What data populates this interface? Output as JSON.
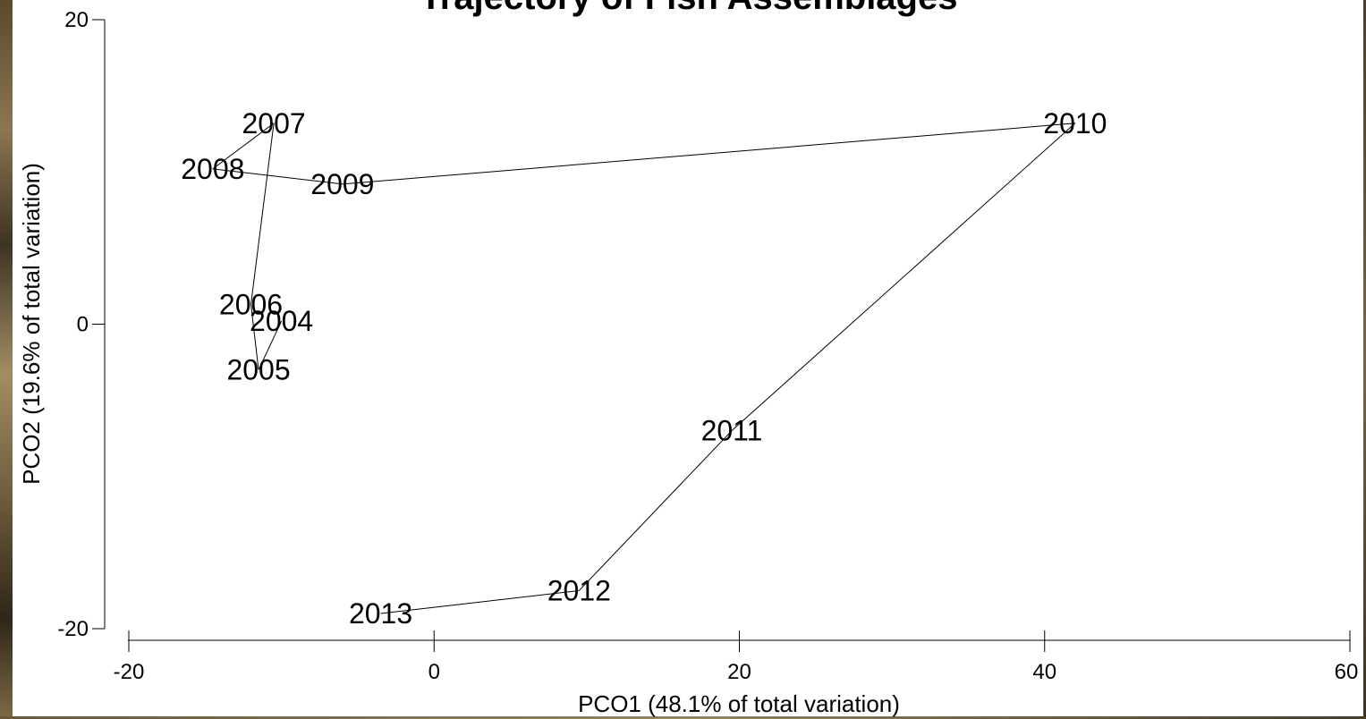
{
  "chart_data": {
    "type": "scatter",
    "title": "Trajectory of Fish Assemblages",
    "xlabel": "PCO1 (48.1% of total variation)",
    "ylabel": "PCO2 (19.6% of total variation)",
    "xlim": [
      -20,
      60
    ],
    "ylim": [
      -20,
      20
    ],
    "xticks": [
      "-20",
      "0",
      "20",
      "40",
      "60"
    ],
    "yticks": [
      "-20",
      "0",
      "20"
    ],
    "grid": false,
    "points": [
      {
        "label": "2004",
        "x": -10,
        "y": 0.2
      },
      {
        "label": "2005",
        "x": -11.5,
        "y": -3
      },
      {
        "label": "2006",
        "x": -12,
        "y": 1.3
      },
      {
        "label": "2007",
        "x": -10.5,
        "y": 13.2
      },
      {
        "label": "2008",
        "x": -14.5,
        "y": 10.2
      },
      {
        "label": "2009",
        "x": -6,
        "y": 9.2
      },
      {
        "label": "2010",
        "x": 42,
        "y": 13.2
      },
      {
        "label": "2011",
        "x": 19.5,
        "y": -7
      },
      {
        "label": "2012",
        "x": 9.5,
        "y": -17.5
      },
      {
        "label": "2013",
        "x": -3.5,
        "y": -19
      }
    ],
    "trajectory_order": [
      "2004",
      "2005",
      "2006",
      "2007",
      "2008",
      "2009",
      "2010",
      "2011",
      "2012",
      "2013"
    ]
  }
}
